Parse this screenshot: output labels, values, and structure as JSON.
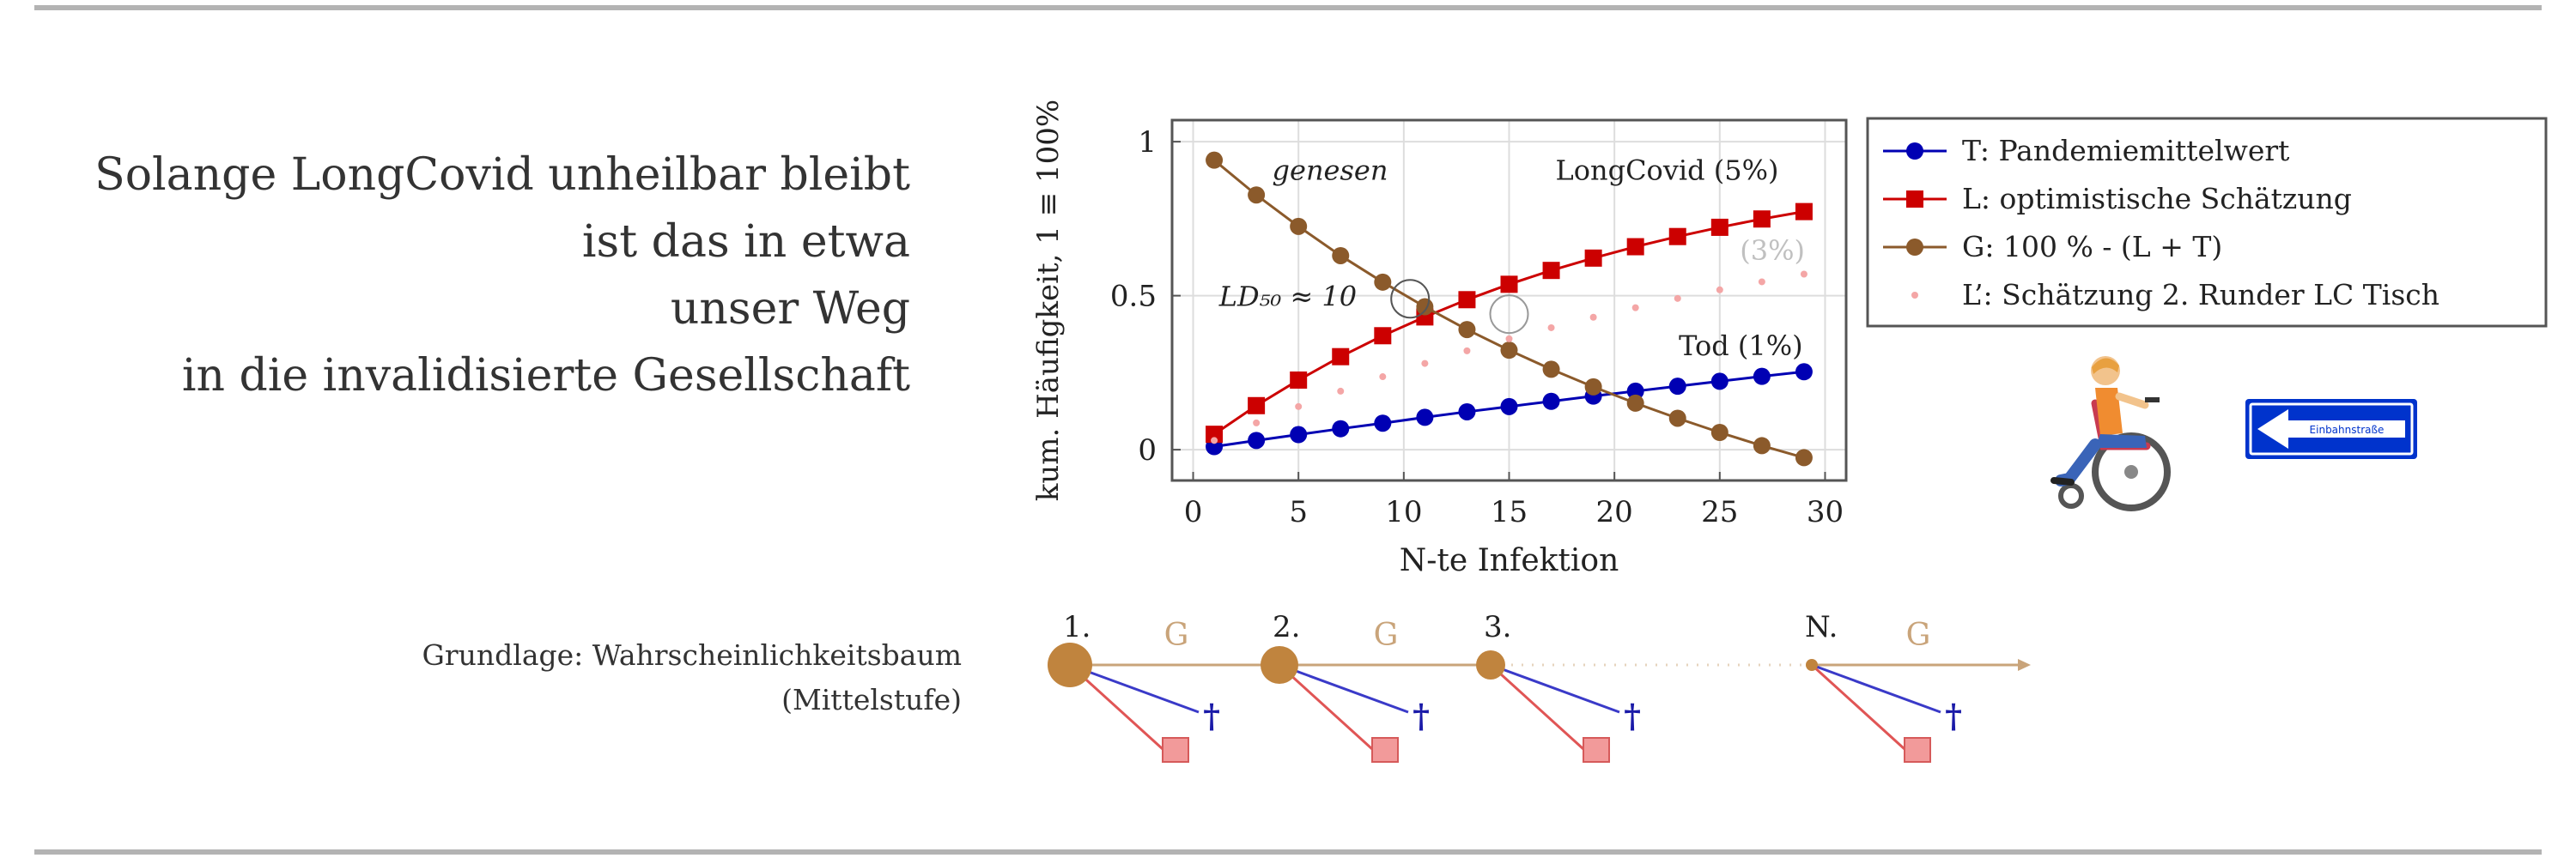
{
  "headline": {
    "lines": [
      "Solange LongCovid unheilbar bleibt",
      "ist das in etwa",
      "unser Weg",
      "in die invalidisierte Gesellschaft"
    ]
  },
  "basis": {
    "line1": "Grundlage: Wahrscheinlichkeitsbaum",
    "line2": "(Mittelstufe)"
  },
  "chart_data": {
    "type": "line",
    "xlabel": "N-te Infektion",
    "ylabel": "kum. Häufigkeit, 1 ≡ 100%",
    "xlim": [
      -1,
      31
    ],
    "ylim": [
      -0.1,
      1.07
    ],
    "xticks": [
      0,
      5,
      10,
      15,
      20,
      25,
      30
    ],
    "yticks": [
      0,
      0.5,
      1
    ],
    "grid": true,
    "legend_position": "right",
    "x": [
      1,
      3,
      5,
      7,
      9,
      11,
      13,
      15,
      17,
      19,
      21,
      23,
      25,
      27,
      29
    ],
    "series": [
      {
        "name": "T: Pandemiemittelwert",
        "color": "#0000b3",
        "marker": "circle",
        "values": [
          0.01,
          0.03,
          0.049,
          0.068,
          0.086,
          0.105,
          0.123,
          0.14,
          0.157,
          0.174,
          0.19,
          0.206,
          0.222,
          0.238,
          0.253
        ]
      },
      {
        "name": "L: optimistische Schätzung",
        "color": "#cc0000",
        "marker": "square",
        "values": [
          0.05,
          0.143,
          0.226,
          0.302,
          0.37,
          0.431,
          0.487,
          0.537,
          0.582,
          0.622,
          0.659,
          0.692,
          0.722,
          0.749,
          0.773
        ]
      },
      {
        "name": "G: 100 % - (L + T)",
        "color": "#8b5a2b",
        "marker": "circle",
        "values": [
          0.94,
          0.827,
          0.725,
          0.63,
          0.544,
          0.464,
          0.39,
          0.323,
          0.261,
          0.204,
          0.151,
          0.102,
          0.056,
          0.013,
          -0.026
        ]
      },
      {
        "name": "L’: Schätzung 2. Runder LC Tisch",
        "color": "#f4a6a6",
        "marker": "dot",
        "values": [
          0.03,
          0.087,
          0.14,
          0.19,
          0.237,
          0.28,
          0.321,
          0.36,
          0.396,
          0.43,
          0.461,
          0.491,
          0.519,
          0.545,
          0.57
        ]
      }
    ],
    "annotations": [
      {
        "text": "genesen",
        "x": 6.5,
        "y": 0.91
      },
      {
        "text": "LongCovid (5%)",
        "x": 22.5,
        "y": 0.91
      },
      {
        "text": "(3%)",
        "x": 27.5,
        "y": 0.65
      },
      {
        "text": "LD₅₀ ≈ 10",
        "x": 4.5,
        "y": 0.5
      },
      {
        "text": "Tod (1%)",
        "x": 26,
        "y": 0.34
      }
    ]
  },
  "tree": {
    "stages": [
      {
        "label": "1.",
        "branch_label": "G"
      },
      {
        "label": "2.",
        "branch_label": "G"
      },
      {
        "label": "3.",
        "branch_label": ""
      },
      {
        "label": "N.",
        "branch_label": "G"
      }
    ],
    "death_symbol": "†"
  },
  "sign": {
    "text": "Einbahnstraße",
    "color": "#0033cc"
  },
  "icons": [
    "wheelchair-person-icon",
    "one-way-sign-icon"
  ]
}
